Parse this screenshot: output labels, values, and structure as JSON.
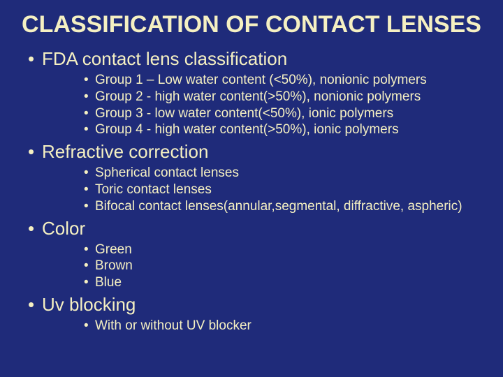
{
  "background_color": "#1f2b7a",
  "text_color": "#f5f0c2",
  "title_fontsize": 34,
  "level1_fontsize": 26,
  "level2_fontsize": 19,
  "font_family": "Arial",
  "title": "CLASSIFICATION OF CONTACT LENSES",
  "sections": [
    {
      "heading": "FDA contact lens classification",
      "items": [
        "Group 1 – Low water content  (<50%), nonionic polymers",
        "Group  2 -  high water content(>50%), nonionic polymers",
        "Group  3 - low water content(<50%), ionic polymers",
        "Group  4 - high water content(>50%), ionic polymers"
      ]
    },
    {
      "heading": "Refractive correction",
      "items": [
        "Spherical contact lenses",
        "Toric contact lenses",
        "Bifocal contact lenses(annular,segmental, diffractive, aspheric)"
      ]
    },
    {
      "heading": "Color",
      "items": [
        "Green",
        "Brown",
        "Blue"
      ]
    },
    {
      "heading": "Uv blocking",
      "items": [
        "With or without UV blocker"
      ]
    }
  ]
}
